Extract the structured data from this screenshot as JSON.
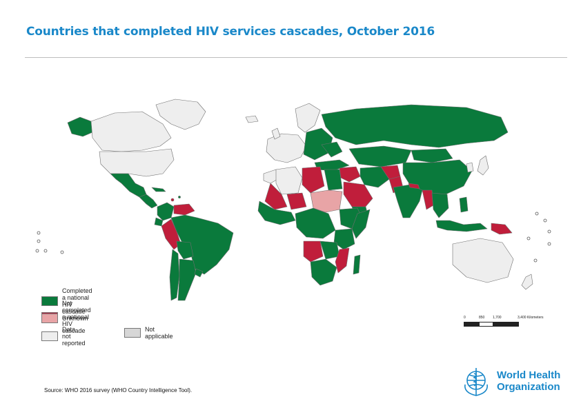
{
  "page": {
    "title": "Countries that completed HIV services cascades, October 2016",
    "source": "Source: WHO 2016 survey (WHO Country Intelligence Tool)."
  },
  "colors": {
    "title": "#1a88c9",
    "completed": "#0a7a3c",
    "not_completed": "#c01e3b",
    "unknown": "#e8a4a6",
    "not_reported": "#eeeeee",
    "not_applicable": "#d7d7d7",
    "border": "#6f6f6f"
  },
  "legend": {
    "items": [
      {
        "key": "completed",
        "label": "Completed a national HIV cascade",
        "color": "#0a7a3c"
      },
      {
        "key": "not_completed",
        "label": "Not completed a national HIV cascade",
        "color": "#c01e3b"
      },
      {
        "key": "unknown",
        "label": "Unknown",
        "color": "#e8a4a6"
      },
      {
        "key": "not_reported",
        "label": "Data not reported",
        "color": "#eeeeee"
      },
      {
        "key": "not_applicable",
        "label": "Not applicable",
        "color": "#d7d7d7"
      }
    ]
  },
  "scale": {
    "labels": [
      "0",
      "850",
      "1,700",
      "3,400 Kilometers"
    ]
  },
  "logo": {
    "line1": "World Health",
    "line2": "Organization"
  }
}
